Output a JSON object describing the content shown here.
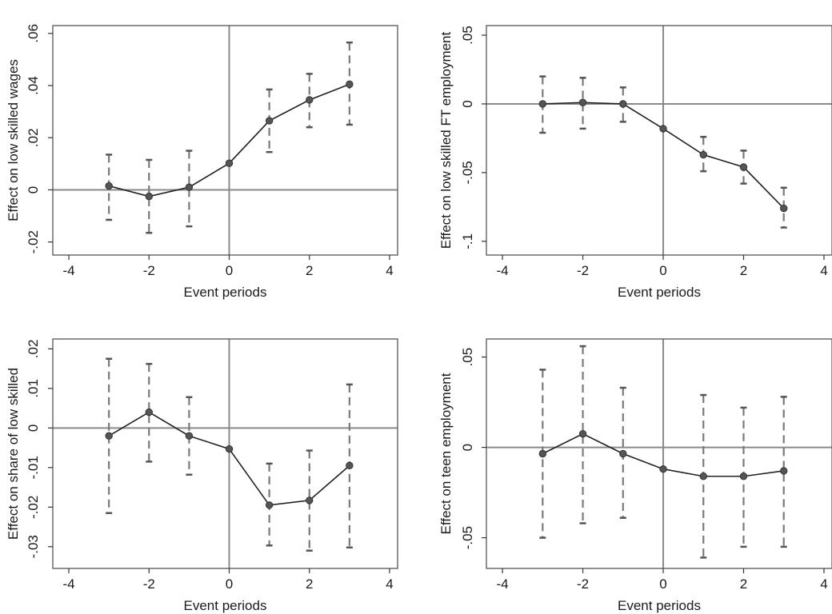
{
  "chart_data": [
    {
      "type": "line",
      "xlabel": "Event periods",
      "ylabel": "Effect on low skilled wages",
      "xlim": [
        -4.4,
        4.2
      ],
      "ylim": [
        -0.025,
        0.063
      ],
      "xticks": [
        -4,
        -2,
        0,
        2,
        4
      ],
      "xtick_labels": [
        "-4",
        "-2",
        "0",
        "2",
        "4"
      ],
      "yticks": [
        -0.02,
        0,
        0.02,
        0.04,
        0.06
      ],
      "ytick_labels": [
        "-.02",
        "0",
        ".02",
        ".04",
        ".06"
      ],
      "x": [
        -3,
        -2,
        -1,
        0,
        1,
        2,
        3
      ],
      "y": [
        0.0015,
        -0.0025,
        0.001,
        0.0102,
        0.0265,
        0.0345,
        0.0405
      ],
      "ci_low": [
        -0.0115,
        -0.0165,
        -0.014,
        null,
        0.0145,
        0.024,
        0.025
      ],
      "ci_high": [
        0.0135,
        0.0115,
        0.015,
        null,
        0.0385,
        0.0445,
        0.0565
      ],
      "grid": false
    },
    {
      "type": "line",
      "xlabel": "Event periods",
      "ylabel": "Effect on low skilled FT employment",
      "xlim": [
        -4.4,
        4.2
      ],
      "ylim": [
        -0.11,
        0.057
      ],
      "xticks": [
        -4,
        -2,
        0,
        2,
        4
      ],
      "xtick_labels": [
        "-4",
        "-2",
        "0",
        "2",
        "4"
      ],
      "yticks": [
        -0.1,
        -0.05,
        0,
        0.05
      ],
      "ytick_labels": [
        "-.1",
        "-.05",
        "0",
        ".05"
      ],
      "x": [
        -3,
        -2,
        -1,
        0,
        1,
        2,
        3
      ],
      "y": [
        0.0,
        0.001,
        0.0,
        -0.018,
        -0.037,
        -0.046,
        -0.076
      ],
      "ci_low": [
        -0.021,
        -0.018,
        -0.013,
        null,
        -0.049,
        -0.058,
        -0.09
      ],
      "ci_high": [
        0.02,
        0.019,
        0.012,
        null,
        -0.024,
        -0.034,
        -0.061
      ],
      "grid": false
    },
    {
      "type": "line",
      "xlabel": "Event periods",
      "ylabel": "Effect on share of low skilled",
      "xlim": [
        -4.4,
        4.2
      ],
      "ylim": [
        -0.0355,
        0.0225
      ],
      "xticks": [
        -4,
        -2,
        0,
        2,
        4
      ],
      "xtick_labels": [
        "-4",
        "-2",
        "0",
        "2",
        "4"
      ],
      "yticks": [
        -0.03,
        -0.02,
        -0.01,
        0,
        0.01,
        0.02
      ],
      "ytick_labels": [
        "-.03",
        "-.02",
        "-.01",
        "0",
        ".01",
        ".02"
      ],
      "x": [
        -3,
        -2,
        -1,
        0,
        1,
        2,
        3
      ],
      "y": [
        -0.002,
        0.004,
        -0.002,
        -0.0053,
        -0.0195,
        -0.0183,
        -0.0095
      ],
      "ci_low": [
        -0.0215,
        -0.0085,
        -0.0118,
        null,
        -0.0297,
        -0.031,
        -0.0302
      ],
      "ci_high": [
        0.0175,
        0.0162,
        0.0078,
        null,
        -0.009,
        -0.0057,
        0.011
      ],
      "grid": false
    },
    {
      "type": "line",
      "xlabel": "Event periods",
      "ylabel": "Effect on teen employment",
      "xlim": [
        -4.4,
        4.2
      ],
      "ylim": [
        -0.067,
        0.06
      ],
      "xticks": [
        -4,
        -2,
        0,
        2,
        4
      ],
      "xtick_labels": [
        "-4",
        "-2",
        "0",
        "2",
        "4"
      ],
      "yticks": [
        -0.05,
        0,
        0.05
      ],
      "ytick_labels": [
        "-.05",
        "0",
        ".05"
      ],
      "x": [
        -3,
        -2,
        -1,
        0,
        1,
        2,
        3
      ],
      "y": [
        -0.0035,
        0.0075,
        -0.0035,
        -0.012,
        -0.016,
        -0.016,
        -0.013
      ],
      "ci_low": [
        -0.05,
        -0.042,
        -0.039,
        null,
        -0.061,
        -0.055,
        -0.055
      ],
      "ci_high": [
        0.043,
        0.056,
        0.033,
        null,
        0.029,
        0.022,
        0.028
      ],
      "grid": false
    }
  ],
  "colors": {
    "frame": "#555555",
    "reference_line": "#8a8a8a",
    "ci": "#7a7a7a",
    "series": "#222222",
    "point": "#555555"
  }
}
